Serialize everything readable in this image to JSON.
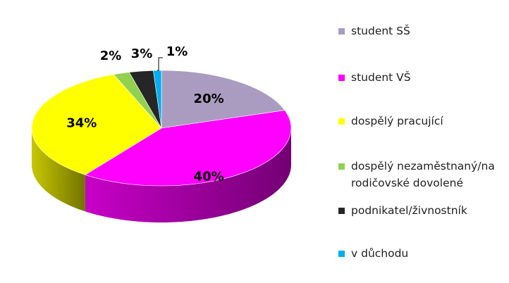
{
  "chart_data": {
    "type": "pie",
    "style": "3d",
    "title": "",
    "legend_position": "right",
    "slices": [
      {
        "label": "student SŠ",
        "value": 20,
        "display": "20%",
        "color": "#a99cc0"
      },
      {
        "label": "student VŠ",
        "value": 40,
        "display": "40%",
        "color": "#ff00ff"
      },
      {
        "label": "dospělý pracující",
        "value": 34,
        "display": "34%",
        "color": "#ffff00"
      },
      {
        "label": "dospělý nezaměstnaný/na rodičovské dovolené",
        "value": 2,
        "display": "2%",
        "color": "#92d050"
      },
      {
        "label": "podnikatel/živnostník",
        "value": 3,
        "display": "3%",
        "color": "#262626"
      },
      {
        "label": "v důchodu",
        "value": 1,
        "display": "1%",
        "color": "#00b0f0"
      }
    ]
  }
}
